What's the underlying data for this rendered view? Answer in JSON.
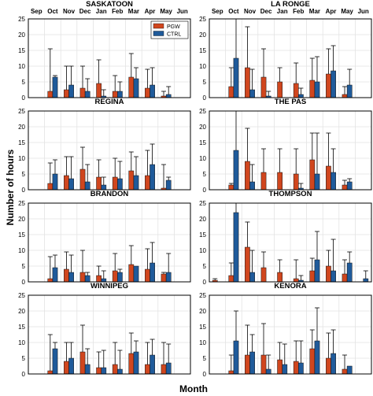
{
  "figure": {
    "ylabel": "Number of hours",
    "xlabel": "Month",
    "months": [
      "Sep",
      "Oct",
      "Nov",
      "Dec",
      "Jan",
      "Feb",
      "Mar",
      "Apr",
      "May",
      "Jun"
    ],
    "legend": [
      {
        "name": "PGW",
        "color": "#d0461e"
      },
      {
        "name": "CTRL",
        "color": "#1f5a9a"
      }
    ]
  },
  "chart_data": [
    {
      "type": "bar",
      "title": "SASKATOON",
      "ylim": [
        0,
        25
      ],
      "yticks": [
        0,
        5,
        10,
        15,
        20,
        25
      ],
      "grid": true,
      "legend_position": "top-right",
      "show_legend": true,
      "categories": [
        "Sep",
        "Oct",
        "Nov",
        "Dec",
        "Jan",
        "Feb",
        "Mar",
        "Apr",
        "May",
        "Jun"
      ],
      "series": [
        {
          "name": "PGW",
          "values": [
            0,
            2,
            2.5,
            3,
            4.5,
            2,
            6.5,
            3,
            0.5,
            0
          ],
          "err_high": [
            0,
            15.5,
            10,
            10,
            12,
            7,
            14,
            9,
            2,
            0
          ]
        },
        {
          "name": "CTRL",
          "values": [
            0,
            6.5,
            4,
            2,
            0.5,
            2,
            6,
            4,
            1,
            0
          ],
          "err_high": [
            0,
            7,
            10,
            6,
            2.5,
            5,
            9.5,
            9.5,
            3.5,
            0
          ]
        }
      ]
    },
    {
      "type": "bar",
      "title": "LA RONGE",
      "ylim": [
        0,
        25
      ],
      "yticks": [
        0,
        5,
        10,
        15,
        20,
        25
      ],
      "grid": true,
      "show_legend": false,
      "categories": [
        "Sep",
        "Oct",
        "Nov",
        "Dec",
        "Jan",
        "Feb",
        "Mar",
        "Apr",
        "May",
        "Jun"
      ],
      "series": [
        {
          "name": "PGW",
          "values": [
            0,
            3.5,
            9.5,
            6.5,
            5,
            4.5,
            5.5,
            7.5,
            1,
            0
          ],
          "err_high": [
            0,
            9.5,
            22.5,
            15.5,
            9.5,
            11,
            12.5,
            15.5,
            3.5,
            0
          ]
        },
        {
          "name": "CTRL",
          "values": [
            0,
            12.5,
            2.5,
            0.5,
            0,
            1,
            5,
            8.5,
            4,
            0
          ],
          "err_high": [
            0,
            25,
            9,
            2,
            0,
            3,
            13,
            16.5,
            9,
            0
          ]
        }
      ]
    },
    {
      "type": "bar",
      "title": "REGINA",
      "ylim": [
        0,
        25
      ],
      "yticks": [
        0,
        5,
        10,
        15,
        20,
        25
      ],
      "grid": true,
      "show_legend": false,
      "categories": [
        "Sep",
        "Oct",
        "Nov",
        "Dec",
        "Jan",
        "Feb",
        "Mar",
        "Apr",
        "May",
        "Jun"
      ],
      "series": [
        {
          "name": "PGW",
          "values": [
            0,
            2,
            4.5,
            6.5,
            4,
            4,
            6,
            4.5,
            0.5,
            0
          ],
          "err_high": [
            0,
            8.5,
            10.5,
            13.5,
            9.5,
            10,
            12,
            12.5,
            8,
            0
          ]
        },
        {
          "name": "CTRL",
          "values": [
            0,
            5,
            3.5,
            2.5,
            1.5,
            3.5,
            4.5,
            8,
            3,
            0
          ],
          "err_high": [
            0,
            9.5,
            10.5,
            8,
            4,
            9,
            10.5,
            14.5,
            4,
            0
          ]
        }
      ]
    },
    {
      "type": "bar",
      "title": "THE PAS",
      "ylim": [
        0,
        25
      ],
      "yticks": [
        0,
        5,
        10,
        15,
        20,
        25
      ],
      "grid": true,
      "show_legend": false,
      "categories": [
        "Sep",
        "Oct",
        "Nov",
        "Dec",
        "Jan",
        "Feb",
        "Mar",
        "Apr",
        "May",
        "Jun"
      ],
      "series": [
        {
          "name": "PGW",
          "values": [
            0,
            1.5,
            9,
            5.5,
            5.5,
            5,
            9.5,
            7.5,
            1.5,
            0
          ],
          "err_high": [
            0,
            2,
            19.5,
            13,
            13,
            13,
            18,
            18,
            3,
            0
          ]
        },
        {
          "name": "CTRL",
          "values": [
            0,
            12.5,
            2.5,
            0,
            0,
            0.5,
            5,
            5.5,
            2.5,
            0
          ],
          "err_high": [
            0,
            25,
            8,
            0,
            0,
            2,
            18,
            13,
            3.5,
            0
          ]
        }
      ]
    },
    {
      "type": "bar",
      "title": "BRANDON",
      "ylim": [
        0,
        25
      ],
      "yticks": [
        0,
        5,
        10,
        15,
        20,
        25
      ],
      "grid": true,
      "show_legend": false,
      "categories": [
        "Sep",
        "Oct",
        "Nov",
        "Dec",
        "Jan",
        "Feb",
        "Mar",
        "Apr",
        "May",
        "Jun"
      ],
      "series": [
        {
          "name": "PGW",
          "values": [
            0,
            1,
            4,
            3,
            2,
            3.5,
            5.5,
            4,
            2.5,
            0
          ],
          "err_high": [
            0,
            8,
            9.5,
            10,
            5,
            9,
            11.5,
            10.5,
            3,
            0
          ]
        },
        {
          "name": "CTRL",
          "values": [
            0,
            4.5,
            3,
            2,
            1,
            3,
            5,
            6,
            3,
            0
          ],
          "err_high": [
            0,
            8.5,
            8.5,
            3,
            3.5,
            4,
            5,
            12.5,
            9,
            0
          ]
        }
      ]
    },
    {
      "type": "bar",
      "title": "THOMPSON",
      "ylim": [
        0,
        25
      ],
      "yticks": [
        0,
        5,
        10,
        15,
        20,
        25
      ],
      "grid": true,
      "show_legend": false,
      "categories": [
        "Sep",
        "Oct",
        "Nov",
        "Dec",
        "Jan",
        "Feb",
        "Mar",
        "Apr",
        "May",
        "Jun"
      ],
      "series": [
        {
          "name": "PGW",
          "values": [
            0.5,
            2,
            11,
            4.5,
            3,
            1,
            3.5,
            5,
            2.5,
            0
          ],
          "err_high": [
            1,
            6,
            19,
            9.5,
            7,
            7,
            7.5,
            10,
            7,
            0
          ]
        },
        {
          "name": "CTRL",
          "values": [
            0,
            22,
            3,
            0,
            0,
            0.5,
            7,
            3.5,
            6,
            1
          ],
          "err_high": [
            0,
            25,
            10,
            0,
            0,
            2,
            16,
            13.5,
            9.5,
            3.5
          ]
        }
      ]
    },
    {
      "type": "bar",
      "title": "WINNIPEG",
      "ylim": [
        0,
        25
      ],
      "yticks": [
        0,
        5,
        10,
        15,
        20,
        25
      ],
      "grid": true,
      "show_legend": false,
      "categories": [
        "Sep",
        "Oct",
        "Nov",
        "Dec",
        "Jan",
        "Feb",
        "Mar",
        "Apr",
        "May",
        "Jun"
      ],
      "series": [
        {
          "name": "PGW",
          "values": [
            0,
            1,
            4,
            7,
            2,
            3,
            6.5,
            3,
            3,
            0
          ],
          "err_high": [
            0,
            12.5,
            10,
            15.5,
            7,
            10,
            13,
            10,
            10,
            0
          ]
        },
        {
          "name": "CTRL",
          "values": [
            0,
            8,
            5,
            3,
            2,
            1.5,
            7,
            6,
            3.5,
            0
          ],
          "err_high": [
            0,
            10,
            10,
            8,
            7.5,
            7.5,
            10.5,
            11,
            9.5,
            0
          ]
        }
      ]
    },
    {
      "type": "bar",
      "title": "KENORA",
      "ylim": [
        0,
        25
      ],
      "yticks": [
        0,
        5,
        10,
        15,
        20,
        25
      ],
      "grid": true,
      "show_legend": false,
      "categories": [
        "Sep",
        "Oct",
        "Nov",
        "Dec",
        "Jan",
        "Feb",
        "Mar",
        "Apr",
        "May",
        "Jun"
      ],
      "series": [
        {
          "name": "PGW",
          "values": [
            0,
            1,
            6,
            6,
            4.5,
            4,
            8,
            5,
            1.5,
            0
          ],
          "err_high": [
            0,
            6,
            15.5,
            16,
            10,
            10.5,
            14,
            13,
            6,
            0
          ]
        },
        {
          "name": "CTRL",
          "values": [
            0,
            10.5,
            7,
            1.5,
            3,
            3.5,
            10.5,
            6.5,
            2.5,
            0
          ],
          "err_high": [
            0,
            20,
            12.5,
            6,
            9.5,
            10.5,
            21,
            14,
            2.5,
            0
          ]
        }
      ]
    }
  ]
}
